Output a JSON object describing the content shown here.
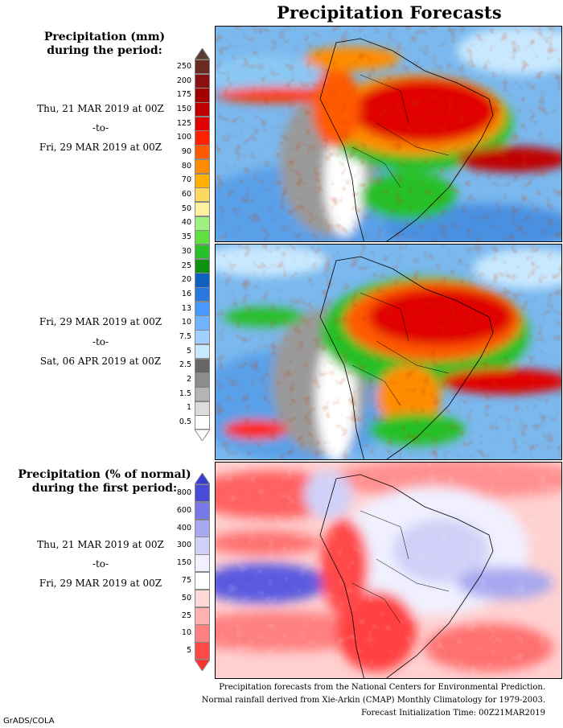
{
  "title": "Precipitation Forecasts",
  "panel1_header": "Precipitation (mm)\nduring the period:",
  "period1": {
    "start": "Thu, 21 MAR 2019 at 00Z",
    "sep": "-to-",
    "end": "Fri, 29 MAR 2019 at 00Z"
  },
  "period2": {
    "start": "Fri, 29 MAR 2019 at 00Z",
    "sep": "-to-",
    "end": "Sat, 06 APR 2019 at 00Z"
  },
  "panel3_header": "Precipitation (% of normal)\nduring the first period:",
  "period3": {
    "start": "Thu, 21 MAR 2019 at 00Z",
    "sep": "-to-",
    "end": "Fri, 29 MAR 2019 at 00Z"
  },
  "precip_scale": {
    "labels": [
      "250",
      "200",
      "175",
      "150",
      "125",
      "100",
      "90",
      "80",
      "70",
      "60",
      "50",
      "40",
      "35",
      "30",
      "25",
      "20",
      "16",
      "13",
      "10",
      "7.5",
      "5",
      "2.5",
      "2",
      "1.5",
      "1",
      "0.5"
    ],
    "colors": [
      "#6b2a20",
      "#8c1010",
      "#a40000",
      "#c00000",
      "#e00000",
      "#ff2000",
      "#ff5a00",
      "#ff8c00",
      "#ffb000",
      "#ffd860",
      "#fff0a0",
      "#a0f080",
      "#60e040",
      "#28c028",
      "#109010",
      "#1060c0",
      "#2878e0",
      "#4898ff",
      "#70b4ff",
      "#a0d0ff",
      "#c8e8ff",
      "#666666",
      "#8c8c8c",
      "#b4b4b4",
      "#dcdcdc",
      "#ffffff"
    ],
    "top_arrow_color": "#5a3b30"
  },
  "percent_scale": {
    "labels": [
      "800",
      "600",
      "400",
      "300",
      "150",
      "75",
      "50",
      "25",
      "10",
      "5"
    ],
    "colors": [
      "#4a4ad8",
      "#7878e8",
      "#a8a8f0",
      "#d0d0f8",
      "#f0f0ff",
      "#ffffff",
      "#ffd8d8",
      "#ffb0b0",
      "#ff8080",
      "#ff4848"
    ],
    "top_arrow_color": "#3c3cd0",
    "bottom_arrow_color": "#ff3030"
  },
  "footer": {
    "line1": "Precipitation forecasts from the National Centers for Environmental Prediction.",
    "line2": "Normal rainfall derived from Xie-Arkin (CMAP) Monthly Climatology for 1979-2003.",
    "line3": "Forecast Initialization Time: 00Z21MAR2019"
  },
  "credit": "GrADS/COLA"
}
